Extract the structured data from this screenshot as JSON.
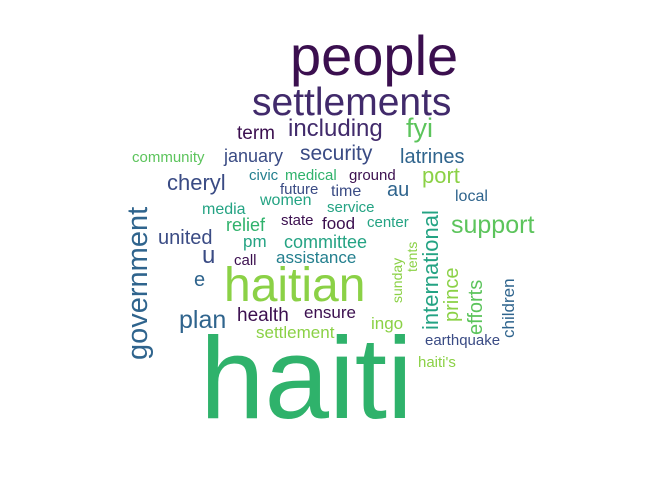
{
  "words": [
    {
      "text": "people",
      "color": "#3b0f4f"
    },
    {
      "text": "settlements",
      "color": "#412a6b"
    },
    {
      "text": "including",
      "color": "#412a6b"
    },
    {
      "text": "fyi",
      "color": "#5cc45c"
    },
    {
      "text": "term",
      "color": "#3b0f4f"
    },
    {
      "text": "community",
      "color": "#5cc45c"
    },
    {
      "text": "january",
      "color": "#3a4b84"
    },
    {
      "text": "security",
      "color": "#3a4b84"
    },
    {
      "text": "latrines",
      "color": "#2f648d"
    },
    {
      "text": "civic",
      "color": "#237f8e"
    },
    {
      "text": "medical",
      "color": "#2fb26b"
    },
    {
      "text": "ground",
      "color": "#3b0f4f"
    },
    {
      "text": "port",
      "color": "#8bd146"
    },
    {
      "text": "cheryl",
      "color": "#3a4b84"
    },
    {
      "text": "future",
      "color": "#3a4b84"
    },
    {
      "text": "time",
      "color": "#3a4b84"
    },
    {
      "text": "au",
      "color": "#2f648d"
    },
    {
      "text": "local",
      "color": "#2f648d"
    },
    {
      "text": "media",
      "color": "#24a383"
    },
    {
      "text": "women",
      "color": "#24a383"
    },
    {
      "text": "service",
      "color": "#24a383"
    },
    {
      "text": "government",
      "color": "#2f648d"
    },
    {
      "text": "international",
      "color": "#24a383"
    },
    {
      "text": "support",
      "color": "#5cc45c"
    },
    {
      "text": "relief",
      "color": "#2fb26b"
    },
    {
      "text": "state",
      "color": "#3b0f4f"
    },
    {
      "text": "food",
      "color": "#3b0f4f"
    },
    {
      "text": "center",
      "color": "#24a383"
    },
    {
      "text": "united",
      "color": "#3a4b84"
    },
    {
      "text": "pm",
      "color": "#24a383"
    },
    {
      "text": "committee",
      "color": "#24a383"
    },
    {
      "text": "sunday",
      "color": "#8bd146"
    },
    {
      "text": "tents",
      "color": "#8bd146"
    },
    {
      "text": "u",
      "color": "#3a4b84"
    },
    {
      "text": "call",
      "color": "#3b0f4f"
    },
    {
      "text": "assistance",
      "color": "#237f8e"
    },
    {
      "text": "haitian",
      "color": "#8bd146"
    },
    {
      "text": "e",
      "color": "#2f648d"
    },
    {
      "text": "prince",
      "color": "#8bd146"
    },
    {
      "text": "efforts",
      "color": "#5cc45c"
    },
    {
      "text": "children",
      "color": "#2f648d"
    },
    {
      "text": "plan",
      "color": "#2f648d"
    },
    {
      "text": "health",
      "color": "#3b0f4f"
    },
    {
      "text": "ensure",
      "color": "#3b0f4f"
    },
    {
      "text": "ingo",
      "color": "#8bd146"
    },
    {
      "text": "settlement",
      "color": "#8bd146"
    },
    {
      "text": "earthquake",
      "color": "#3a4b84"
    },
    {
      "text": "haiti's",
      "color": "#8bd146"
    },
    {
      "text": "haiti",
      "color": "#2fb26b"
    }
  ]
}
